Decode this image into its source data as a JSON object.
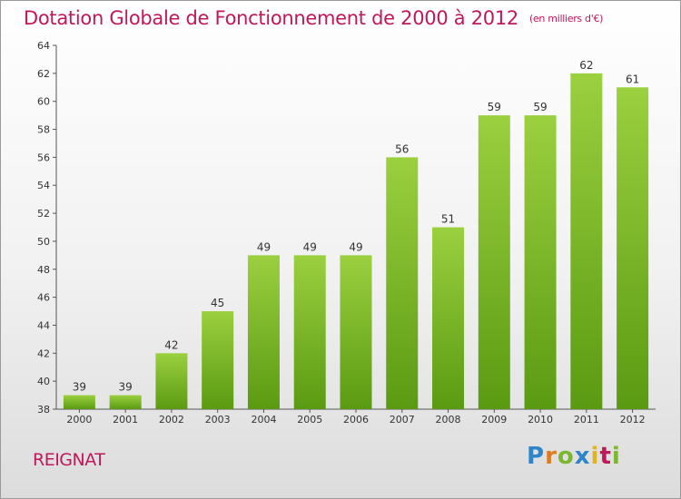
{
  "chart_data": {
    "type": "bar",
    "title": "Dotation Globale de Fonctionnement de 2000 à 2012",
    "subtitle": "(en milliers d'€)",
    "categories": [
      "2000",
      "2001",
      "2002",
      "2003",
      "2004",
      "2005",
      "2006",
      "2007",
      "2008",
      "2009",
      "2010",
      "2011",
      "2012"
    ],
    "values": [
      39,
      39,
      42,
      45,
      49,
      49,
      49,
      56,
      51,
      59,
      59,
      62,
      61
    ],
    "ylim": [
      38,
      64
    ],
    "yticks": [
      38,
      40,
      42,
      44,
      46,
      48,
      50,
      52,
      54,
      56,
      58,
      60,
      62,
      64
    ],
    "grid": false,
    "colors": {
      "bar_top": "#9bd03f",
      "bar_bottom": "#5a9a12",
      "title": "#c0185a"
    }
  },
  "footer": {
    "commune": "REIGNAT",
    "logo_letters": [
      "P",
      "r",
      "o",
      "x",
      "i",
      "t",
      "i"
    ]
  }
}
